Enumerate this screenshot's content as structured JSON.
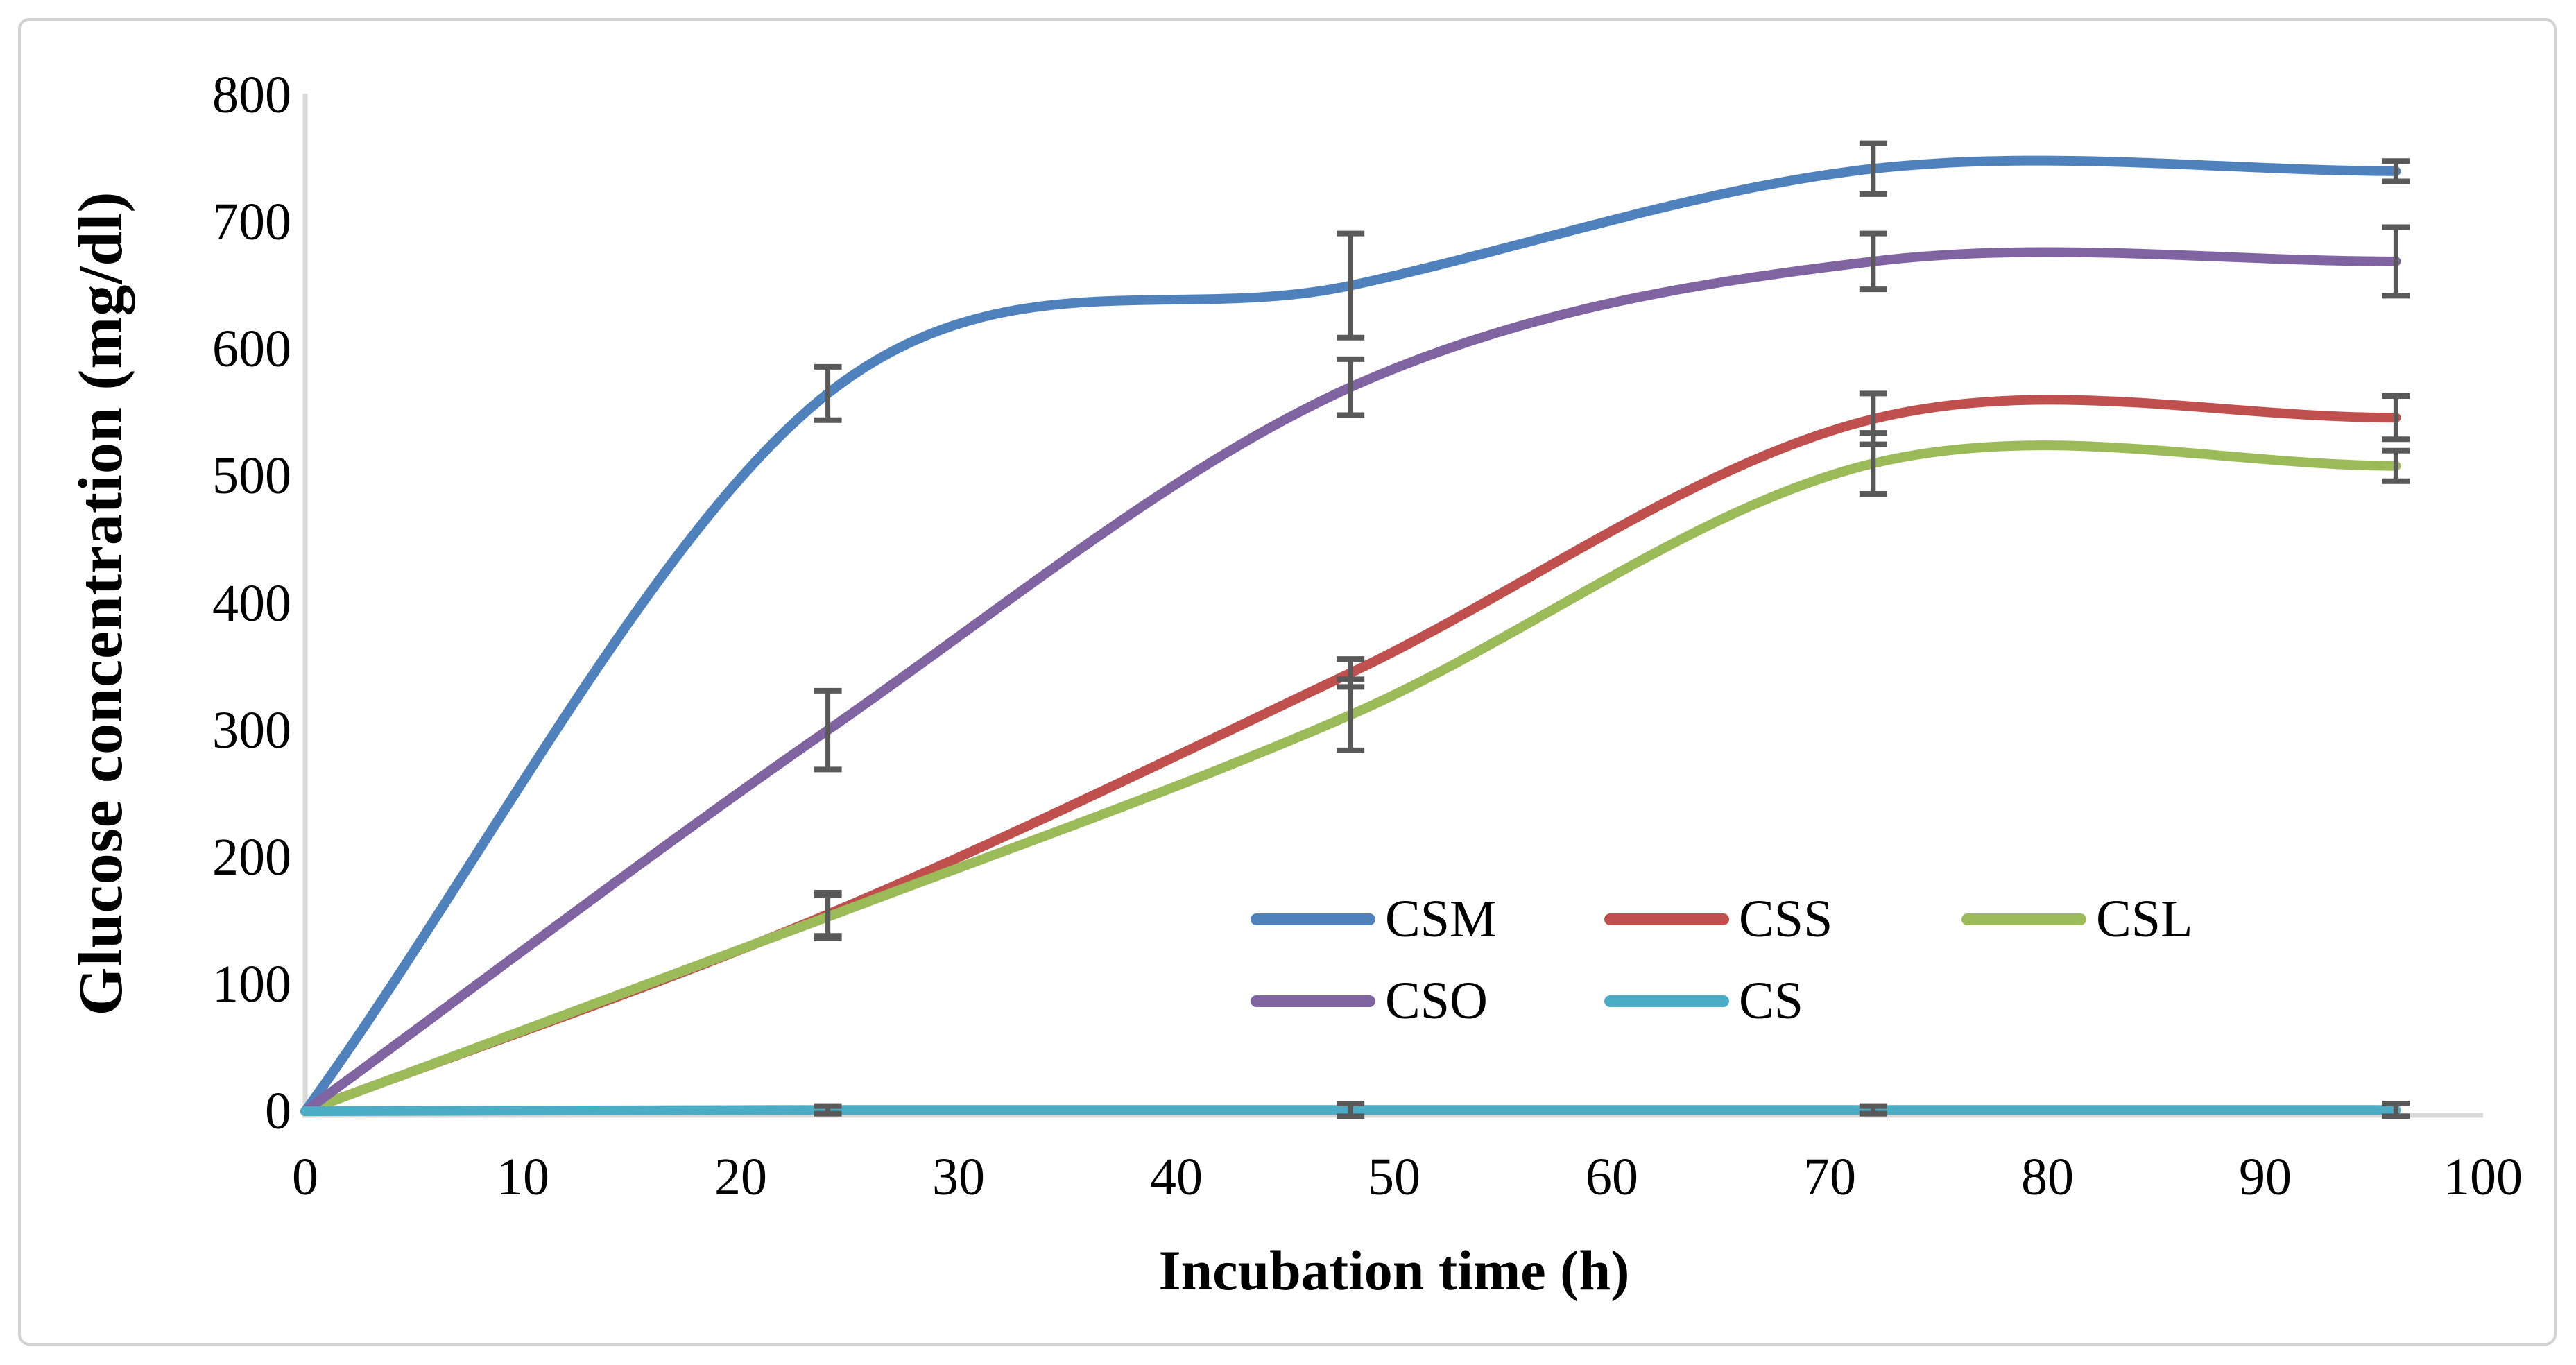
{
  "chart_data": {
    "type": "line",
    "line_style": "smooth",
    "title": "",
    "xlabel": "Incubation time (h)",
    "ylabel": "Glucose concentration (mg/dl)",
    "x": [
      0,
      24,
      48,
      72,
      96
    ],
    "xlim": [
      0,
      100
    ],
    "ylim": [
      0,
      800
    ],
    "x_ticks": [
      "0",
      "10",
      "20",
      "30",
      "40",
      "50",
      "60",
      "70",
      "80",
      "90",
      "100"
    ],
    "y_ticks": [
      "0",
      "100",
      "200",
      "300",
      "400",
      "500",
      "600",
      "700",
      "800"
    ],
    "grid": false,
    "error_bars": true,
    "error_bar_color": "#595959",
    "axis_color": "#D9D9D9",
    "legend_position": "inside bottom-center, two rows",
    "series": [
      {
        "name": "CSM",
        "color": "#4F81BD",
        "values": [
          0,
          565,
          650,
          742,
          740
        ],
        "errors": [
          0,
          21,
          41,
          20,
          8
        ]
      },
      {
        "name": "CSS",
        "color": "#C0504D",
        "values": [
          0,
          155,
          345,
          545,
          546
        ],
        "errors": [
          0,
          17,
          11,
          20,
          17
        ]
      },
      {
        "name": "CSL",
        "color": "#9BBB59",
        "values": [
          0,
          153,
          312,
          510,
          508
        ],
        "errors": [
          0,
          17,
          28,
          24,
          12
        ]
      },
      {
        "name": "CSO",
        "color": "#8064A2",
        "values": [
          0,
          300,
          570,
          669,
          669
        ],
        "errors": [
          0,
          31,
          22,
          22,
          27
        ]
      },
      {
        "name": "CS",
        "color": "#4BACC6",
        "values": [
          0,
          1,
          1,
          1,
          1
        ],
        "errors": [
          0,
          3,
          5,
          3,
          5
        ]
      }
    ],
    "legend_rows": [
      [
        "CSM",
        "CSS",
        "CSL"
      ],
      [
        "CSO",
        "CS"
      ]
    ]
  }
}
